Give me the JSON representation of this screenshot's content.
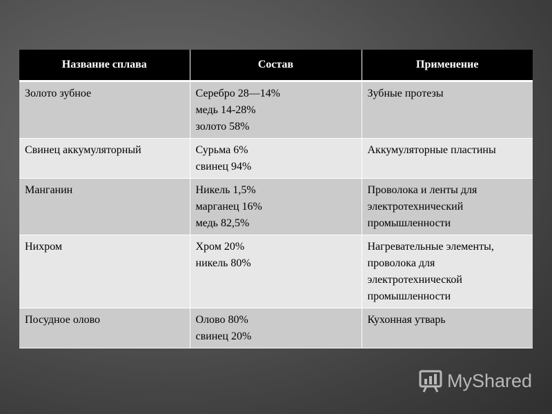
{
  "table": {
    "headers": [
      "Название сплава",
      "Состав",
      "Применение"
    ],
    "rows": [
      {
        "name": "Золото зубное",
        "composition": [
          "Серебро 28—14%",
          "медь 14-28%",
          "золото 58%"
        ],
        "application": "Зубные протезы"
      },
      {
        "name": "Свинец аккумуляторный",
        "composition": [
          "Сурьма 6%",
          "свинец 94%"
        ],
        "application": "Аккумуляторные пластины"
      },
      {
        "name": "Манганин",
        "composition": [
          "Никель 1,5%",
          "марганец 16%",
          "медь 82,5%"
        ],
        "application": "Проволока и ленты для электротехнический промышленности"
      },
      {
        "name": "Нихром",
        "composition": [
          "Хром 20%",
          "никель 80%"
        ],
        "application": "Нагревательные элементы, проволока для электротехнической промышленности"
      },
      {
        "name": "Посудное олово",
        "composition": [
          "Олово 80%",
          "свинец 20%"
        ],
        "application": "Кухонная утварь"
      }
    ]
  },
  "watermark": {
    "text": "MyShared"
  },
  "colors": {
    "header_bg": "#000000",
    "row_odd": "#cbcbcb",
    "row_even": "#e7e7e7"
  }
}
